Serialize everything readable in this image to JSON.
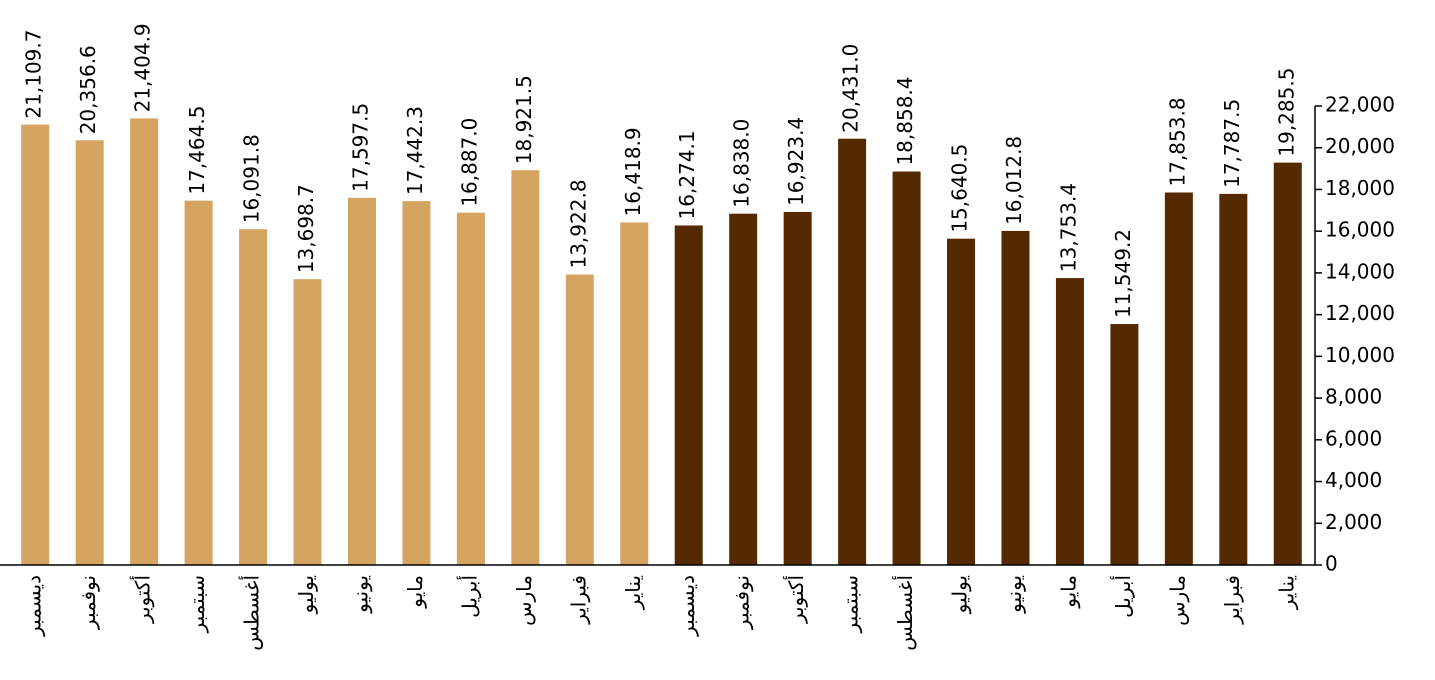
{
  "chart_data": {
    "type": "bar",
    "categories": [
      "ديسمبر",
      "نوفمبر",
      "أكتوبر",
      "سبتمبر",
      "أغسطس",
      "يوليو",
      "يونيو",
      "مايو",
      "أبريل",
      "مارس",
      "فبراير",
      "يناير",
      "ديسمبر",
      "نوفمبر",
      "أكتوبر",
      "سبتمبر",
      "أغسطس",
      "يوليو",
      "يونيو",
      "مايو",
      "أبريل",
      "مارس",
      "فبراير",
      "يناير"
    ],
    "values": [
      21109.7,
      20356.6,
      21404.9,
      17464.5,
      16091.8,
      13698.7,
      17597.5,
      17442.3,
      16887.0,
      18921.5,
      13922.8,
      16418.9,
      16274.1,
      16838.0,
      16923.4,
      20431.0,
      18858.4,
      15640.5,
      16012.8,
      13753.4,
      11549.2,
      17853.8,
      17787.5,
      19285.5
    ],
    "value_labels": [
      "21,109.7",
      "20,356.6",
      "21,404.9",
      "17,464.5",
      "16,091.8",
      "13,698.7",
      "17,597.5",
      "17,442.3",
      "16,887.0",
      "18,921.5",
      "13,922.8",
      "16,418.9",
      "16,274.1",
      "16,838.0",
      "16,923.4",
      "20,431.0",
      "18,858.4",
      "15,640.5",
      "16,012.8",
      "13,753.4",
      "11,549.2",
      "17,853.8",
      "17,787.5",
      "19,285.5"
    ],
    "colors": [
      "#d4a460",
      "#d4a460",
      "#d4a460",
      "#d4a460",
      "#d4a460",
      "#d4a460",
      "#d4a460",
      "#d4a460",
      "#d4a460",
      "#d4a460",
      "#d4a460",
      "#d4a460",
      "#552a00",
      "#552a00",
      "#552a00",
      "#552a00",
      "#552a00",
      "#552a00",
      "#552a00",
      "#552a00",
      "#552a00",
      "#552a00",
      "#552a00",
      "#552a00"
    ],
    "ylim": [
      0,
      22000
    ],
    "yticks": [
      0,
      {
        "value": 2000,
        "label": "2,000"
      },
      {
        "value": 4000,
        "label": "4,000"
      },
      {
        "value": 6000,
        "label": "6,000"
      },
      {
        "value": 8000,
        "label": "8,000"
      },
      {
        "value": 10000,
        "label": "10,000"
      },
      {
        "value": 12000,
        "label": "12,000"
      },
      {
        "value": 14000,
        "label": "14,000"
      },
      {
        "value": 16000,
        "label": "16,000"
      },
      {
        "value": 18000,
        "label": "18,000"
      },
      {
        "value": 20000,
        "label": "20,000"
      },
      {
        "value": 22000,
        "label": "22,000"
      }
    ],
    "y_axis_side": "right"
  }
}
